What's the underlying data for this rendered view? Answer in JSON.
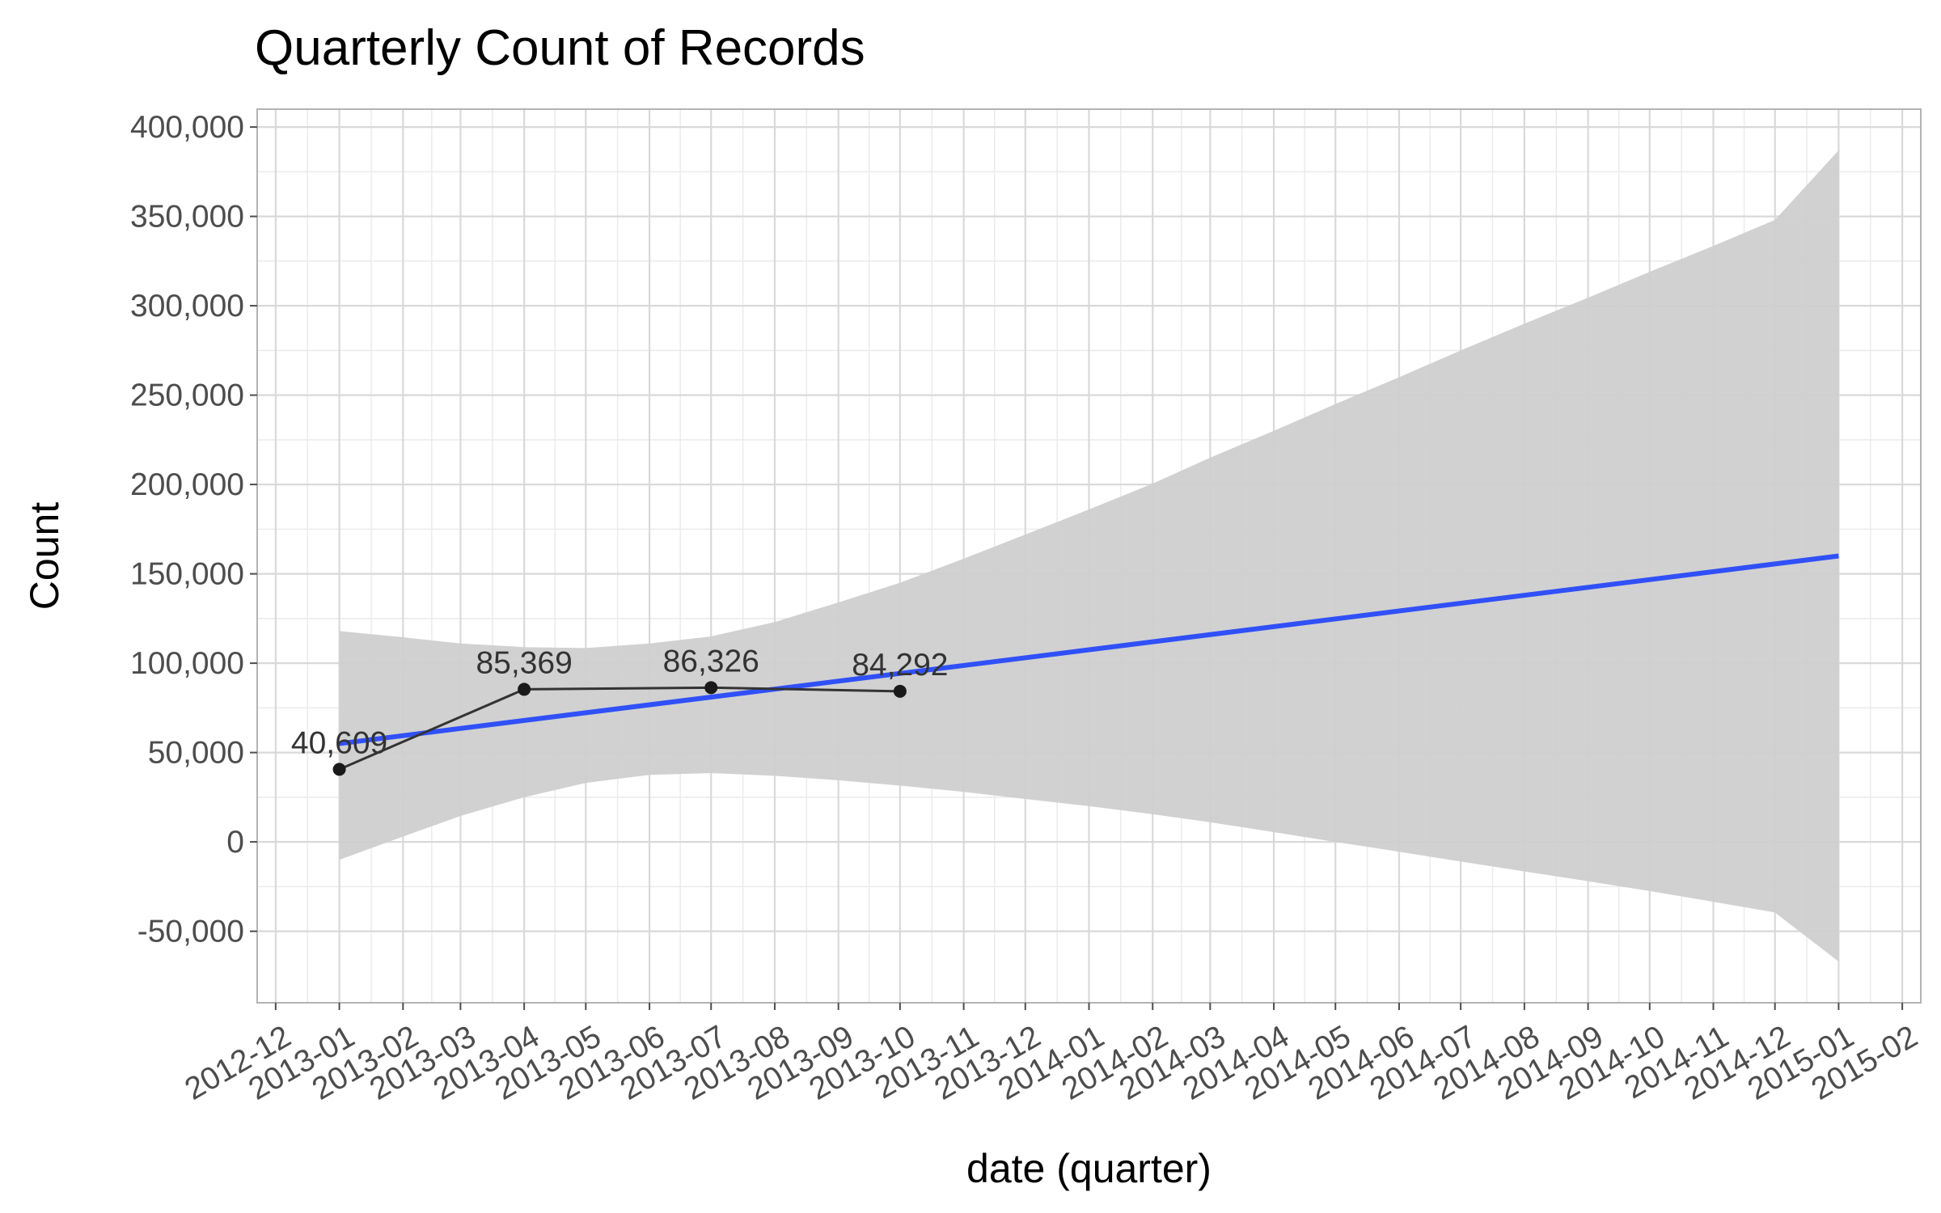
{
  "chart_data": {
    "type": "line",
    "title": "Quarterly Count of Records",
    "xlabel": "date (quarter)",
    "ylabel": "Count",
    "x_ticks": [
      "2012-12",
      "2013-01",
      "2013-02",
      "2013-03",
      "2013-04",
      "2013-05",
      "2013-06",
      "2013-07",
      "2013-08",
      "2013-09",
      "2013-10",
      "2013-11",
      "2013-12",
      "2014-01",
      "2014-02",
      "2014-03",
      "2014-04",
      "2014-05",
      "2014-06",
      "2014-07",
      "2014-08",
      "2014-09",
      "2014-10",
      "2014-11",
      "2014-12",
      "2015-01",
      "2015-02"
    ],
    "y_ticks": [
      -50000,
      0,
      50000,
      100000,
      150000,
      200000,
      250000,
      300000,
      350000,
      400000
    ],
    "y_tick_labels": [
      "-50,000",
      "0",
      "50,000",
      "100,000",
      "150,000",
      "200,000",
      "250,000",
      "300,000",
      "350,000",
      "400,000"
    ],
    "xlim": [
      "2012-11-22",
      "2015-02-10"
    ],
    "ylim": [
      -90000,
      410000
    ],
    "grid": true,
    "series": [
      {
        "kind": "observed",
        "color": "#333333",
        "points": [
          {
            "x": "2013-01-01",
            "y": 40609,
            "label": "40,609"
          },
          {
            "x": "2013-04-01",
            "y": 85369,
            "label": "85,369"
          },
          {
            "x": "2013-07-01",
            "y": 86326,
            "label": "86,326"
          },
          {
            "x": "2013-10-01",
            "y": 84292,
            "label": "84,292"
          }
        ]
      },
      {
        "kind": "linear-trend",
        "color": "#3050F8",
        "points": [
          {
            "x": "2013-01-01",
            "y": 55000
          },
          {
            "x": "2015-01-01",
            "y": 160000
          }
        ]
      },
      {
        "kind": "confidence-band",
        "color": "#cfcfcf",
        "points": [
          {
            "x": "2013-01-01",
            "lower": -10000,
            "upper": 118000
          },
          {
            "x": "2013-02-01",
            "lower": 3000,
            "upper": 114500
          },
          {
            "x": "2013-03-01",
            "lower": 14500,
            "upper": 111000
          },
          {
            "x": "2013-04-01",
            "lower": 25000,
            "upper": 109000
          },
          {
            "x": "2013-05-01",
            "lower": 33000,
            "upper": 108500
          },
          {
            "x": "2013-06-01",
            "lower": 37500,
            "upper": 111000
          },
          {
            "x": "2013-07-01",
            "lower": 38500,
            "upper": 115000
          },
          {
            "x": "2013-08-01",
            "lower": 37000,
            "upper": 123000
          },
          {
            "x": "2013-09-01",
            "lower": 34500,
            "upper": 134000
          },
          {
            "x": "2013-10-01",
            "lower": 31500,
            "upper": 145000
          },
          {
            "x": "2013-11-01",
            "lower": 28000,
            "upper": 158500
          },
          {
            "x": "2013-12-01",
            "lower": 24000,
            "upper": 172000
          },
          {
            "x": "2014-01-01",
            "lower": 20000,
            "upper": 186000
          },
          {
            "x": "2014-02-01",
            "lower": 15500,
            "upper": 200500
          },
          {
            "x": "2014-03-01",
            "lower": 11000,
            "upper": 215000
          },
          {
            "x": "2014-04-01",
            "lower": 5500,
            "upper": 230000
          },
          {
            "x": "2014-05-01",
            "lower": 0,
            "upper": 245000
          },
          {
            "x": "2014-06-01",
            "lower": -5500,
            "upper": 260000
          },
          {
            "x": "2014-07-01",
            "lower": -11000,
            "upper": 275000
          },
          {
            "x": "2014-08-01",
            "lower": -16500,
            "upper": 290000
          },
          {
            "x": "2014-09-01",
            "lower": -22000,
            "upper": 304500
          },
          {
            "x": "2014-10-01",
            "lower": -27500,
            "upper": 319000
          },
          {
            "x": "2014-11-01",
            "lower": -33500,
            "upper": 333500
          },
          {
            "x": "2014-12-01",
            "lower": -39500,
            "upper": 348000
          },
          {
            "x": "2015-01-01",
            "lower": -67000,
            "upper": 387000
          }
        ]
      }
    ]
  }
}
